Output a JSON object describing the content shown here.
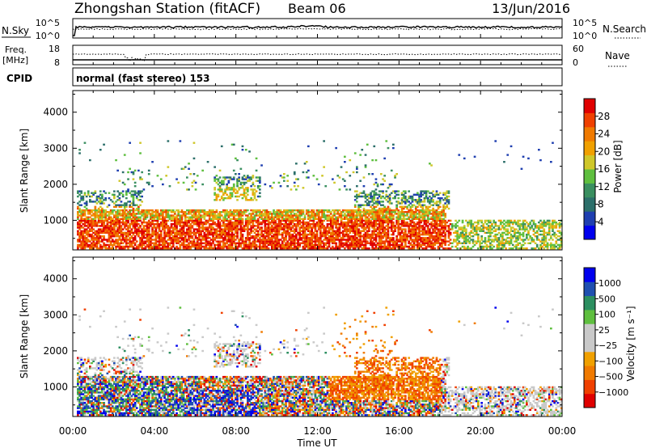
{
  "header": {
    "station": "Zhongshan Station (fitACF)",
    "beam": "Beam 06",
    "date": "13/Jun/2016"
  },
  "nsky_panel": {
    "left_label": "N.Sky",
    "right_label": "N.Search",
    "left_ticks": [
      "10^5",
      "10^0"
    ],
    "right_ticks": [
      "10^5",
      "10^0"
    ]
  },
  "freq_panel": {
    "left_label_1": "Freq.",
    "left_label_2": "[MHz]",
    "right_label": "Nave",
    "left_ticks": [
      "18",
      "8"
    ],
    "right_ticks": [
      "60",
      "0"
    ]
  },
  "cpid": {
    "label": "CPID",
    "value": "normal (fast stereo) 153"
  },
  "colors": {
    "power_scale": [
      "#0000ee",
      "#1f3fb0",
      "#2c6f6a",
      "#3a8f60",
      "#5fbf3f",
      "#cfc72a",
      "#f0a000",
      "#f07a00",
      "#f04000",
      "#e00000"
    ],
    "velocity_scale": [
      "#e00000",
      "#f04000",
      "#f07a00",
      "#f0a000",
      "#c9c9c9",
      "#c9c9c9",
      "#5fbf3f",
      "#2c8f60",
      "#1f4fb0",
      "#0000ee"
    ]
  },
  "chart_data": [
    {
      "type": "heatmap",
      "name": "power",
      "xlabel": "",
      "ylabel": "Slant Range [km]",
      "yticks": [
        "1000",
        "2000",
        "3000",
        "4000"
      ],
      "ylim": [
        180,
        4600
      ],
      "xlim": [
        0,
        24
      ],
      "colorbar_label": "Power [dB]",
      "colorbar_ticks": [
        "4",
        "8",
        "12",
        "16",
        "20",
        "24",
        "28"
      ],
      "colorbar_range": [
        0,
        32
      ]
    },
    {
      "type": "heatmap",
      "name": "velocity",
      "xlabel": "Time UT",
      "ylabel": "Slant Range [km]",
      "xticks": [
        "00:00",
        "04:00",
        "08:00",
        "12:00",
        "16:00",
        "20:00",
        "00:00"
      ],
      "yticks": [
        "1000",
        "2000",
        "3000",
        "4000"
      ],
      "ylim": [
        180,
        4600
      ],
      "xlim": [
        0,
        24
      ],
      "colorbar_label": "Velocity [m s⁻¹]",
      "colorbar_ticks": [
        "1000",
        "500",
        "100",
        "25",
        "−25",
        "−100",
        "−500",
        "−1000"
      ]
    }
  ]
}
